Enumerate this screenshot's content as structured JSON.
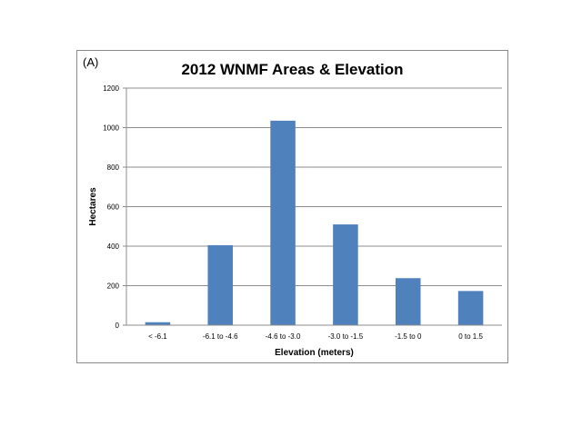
{
  "panel_label": "(A)",
  "colors": {
    "bar": "#4f81bd",
    "grid": "#8c8c8c",
    "axis": "#8c8c8c",
    "border": "#8a8a8a"
  },
  "chart_data": {
    "type": "bar",
    "title": "2012 WNMF Areas & Elevation",
    "xlabel": "Elevation (meters)",
    "ylabel": "Hectares",
    "categories": [
      "< -6.1",
      "-6.1 to -4.6",
      "-4.6 to -3.0",
      "-3.0 to -1.5",
      "-1.5 to 0",
      "0 to 1.5"
    ],
    "values": [
      15,
      405,
      1035,
      510,
      238,
      173
    ],
    "ylim": [
      0,
      1200
    ],
    "yticks": [
      0,
      200,
      400,
      600,
      800,
      1000,
      1200
    ],
    "grid": true,
    "legend": "none"
  }
}
